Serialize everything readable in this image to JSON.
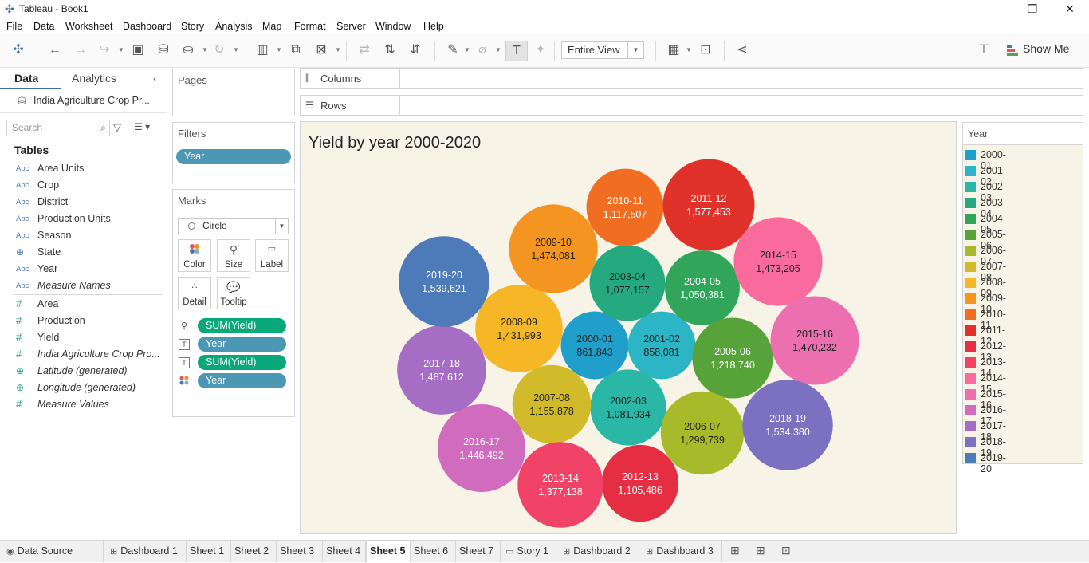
{
  "window": {
    "title": "Tableau - Book1",
    "controls": [
      "—",
      "❐",
      "✕"
    ]
  },
  "menu": [
    "File",
    "Data",
    "Worksheet",
    "Dashboard",
    "Story",
    "Analysis",
    "Map",
    "Format",
    "Server",
    "Window",
    "Help"
  ],
  "toolbar": {
    "fit_value": "Entire View",
    "show_me_label": "Show Me"
  },
  "data_pane": {
    "tab_data": "Data",
    "tab_analytics": "Analytics",
    "datasource": "India Agriculture Crop Pr...",
    "search_placeholder": "Search",
    "tables_header": "Tables",
    "dimensions": [
      {
        "type": "Abc",
        "name": "Area Units"
      },
      {
        "type": "Abc",
        "name": "Crop"
      },
      {
        "type": "Abc",
        "name": "District"
      },
      {
        "type": "Abc",
        "name": "Production Units"
      },
      {
        "type": "Abc",
        "name": "Season"
      },
      {
        "type": "globe",
        "name": "State"
      },
      {
        "type": "Abc",
        "name": "Year"
      },
      {
        "type": "Abc",
        "name": "Measure Names"
      }
    ],
    "measures": [
      {
        "type": "#",
        "name": "Area"
      },
      {
        "type": "#",
        "name": "Production"
      },
      {
        "type": "#",
        "name": "Yield"
      },
      {
        "type": "#",
        "name": "India Agriculture Crop Pro..."
      },
      {
        "type": "globe",
        "name": "Latitude (generated)"
      },
      {
        "type": "globe",
        "name": "Longitude (generated)"
      },
      {
        "type": "#",
        "name": "Measure Values"
      }
    ]
  },
  "shelves": {
    "pages_title": "Pages",
    "filters_title": "Filters",
    "filter_pill": "Year",
    "marks_title": "Marks",
    "mark_type": "Circle",
    "mark_buttons": [
      "Color",
      "Size",
      "Label",
      "Detail",
      "Tooltip"
    ],
    "mark_fields": [
      "SUM(Yield)",
      "Year",
      "SUM(Yield)",
      "Year"
    ],
    "columns_label": "Columns",
    "rows_label": "Rows"
  },
  "viz": {
    "title": "Yield by year 2000-2020"
  },
  "chart_data": {
    "type": "packed-bubble",
    "title": "Yield by year 2000-2020",
    "size_measure": "SUM(Yield)",
    "color_dimension": "Year",
    "points": [
      {
        "year": "2000-01",
        "yield": 861843,
        "label": "861,843",
        "color": "#1f9fc9",
        "text": "#222222"
      },
      {
        "year": "2001-02",
        "yield": 858081,
        "label": "858,081",
        "color": "#2bb5c5",
        "text": "#222222"
      },
      {
        "year": "2002-03",
        "yield": 1081934,
        "label": "1,081,934",
        "color": "#2bb7a6",
        "text": "#222222"
      },
      {
        "year": "2003-04",
        "yield": 1077157,
        "label": "1,077,157",
        "color": "#25aa7f",
        "text": "#222222"
      },
      {
        "year": "2004-05",
        "yield": 1050381,
        "label": "1,050,381",
        "color": "#31a65a",
        "text": "#ffffff"
      },
      {
        "year": "2005-06",
        "yield": 1218740,
        "label": "1,218,740",
        "color": "#57a33a",
        "text": "#ffffff"
      },
      {
        "year": "2006-07",
        "yield": 1299739,
        "label": "1,299,739",
        "color": "#a7ba2a",
        "text": "#222222"
      },
      {
        "year": "2007-08",
        "yield": 1155878,
        "label": "1,155,878",
        "color": "#d1bb2b",
        "text": "#222222"
      },
      {
        "year": "2008-09",
        "yield": 1431993,
        "label": "1,431,993",
        "color": "#f6b727",
        "text": "#222222"
      },
      {
        "year": "2009-10",
        "yield": 1474081,
        "label": "1,474,081",
        "color": "#f59521",
        "text": "#222222"
      },
      {
        "year": "2010-11",
        "yield": 1117507,
        "label": "1,117,507",
        "color": "#f06d22",
        "text": "#ffffff"
      },
      {
        "year": "2011-12",
        "yield": 1577453,
        "label": "1,577,453",
        "color": "#e0312a",
        "text": "#ffffff"
      },
      {
        "year": "2012-13",
        "yield": 1105486,
        "label": "1,105,486",
        "color": "#e62e42",
        "text": "#ffffff"
      },
      {
        "year": "2013-14",
        "yield": 1377138,
        "label": "1,377,138",
        "color": "#f14368",
        "text": "#ffffff"
      },
      {
        "year": "2014-15",
        "yield": 1473205,
        "label": "1,473,205",
        "color": "#f96b9c",
        "text": "#222222"
      },
      {
        "year": "2015-16",
        "yield": 1470232,
        "label": "1,470,232",
        "color": "#ec6fb0",
        "text": "#222222"
      },
      {
        "year": "2016-17",
        "yield": 1446492,
        "label": "1,446,492",
        "color": "#d06bbe",
        "text": "#ffffff"
      },
      {
        "year": "2017-18",
        "yield": 1487612,
        "label": "1,487,612",
        "color": "#a56dc4",
        "text": "#ffffff"
      },
      {
        "year": "2018-19",
        "yield": 1534380,
        "label": "1,534,380",
        "color": "#7b71c0",
        "text": "#ffffff"
      },
      {
        "year": "2019-20",
        "yield": 1539621,
        "label": "1,539,621",
        "color": "#4d7ab9",
        "text": "#ffffff"
      }
    ]
  },
  "legend": {
    "title": "Year"
  },
  "tabs": [
    {
      "label": "Data Source",
      "icon": "◉"
    },
    {
      "label": "Dashboard 1",
      "icon": "⊞"
    },
    {
      "label": "Sheet 1",
      "icon": ""
    },
    {
      "label": "Sheet 2",
      "icon": ""
    },
    {
      "label": "Sheet 3",
      "icon": ""
    },
    {
      "label": "Sheet 4",
      "icon": ""
    },
    {
      "label": "Sheet 5",
      "icon": ""
    },
    {
      "label": "Sheet 6",
      "icon": ""
    },
    {
      "label": "Sheet 7",
      "icon": ""
    },
    {
      "label": "Story 1",
      "icon": "▭"
    },
    {
      "label": "Dashboard 2",
      "icon": "⊞"
    },
    {
      "label": "Dashboard 3",
      "icon": "⊞"
    }
  ],
  "active_tab": "Sheet 5"
}
